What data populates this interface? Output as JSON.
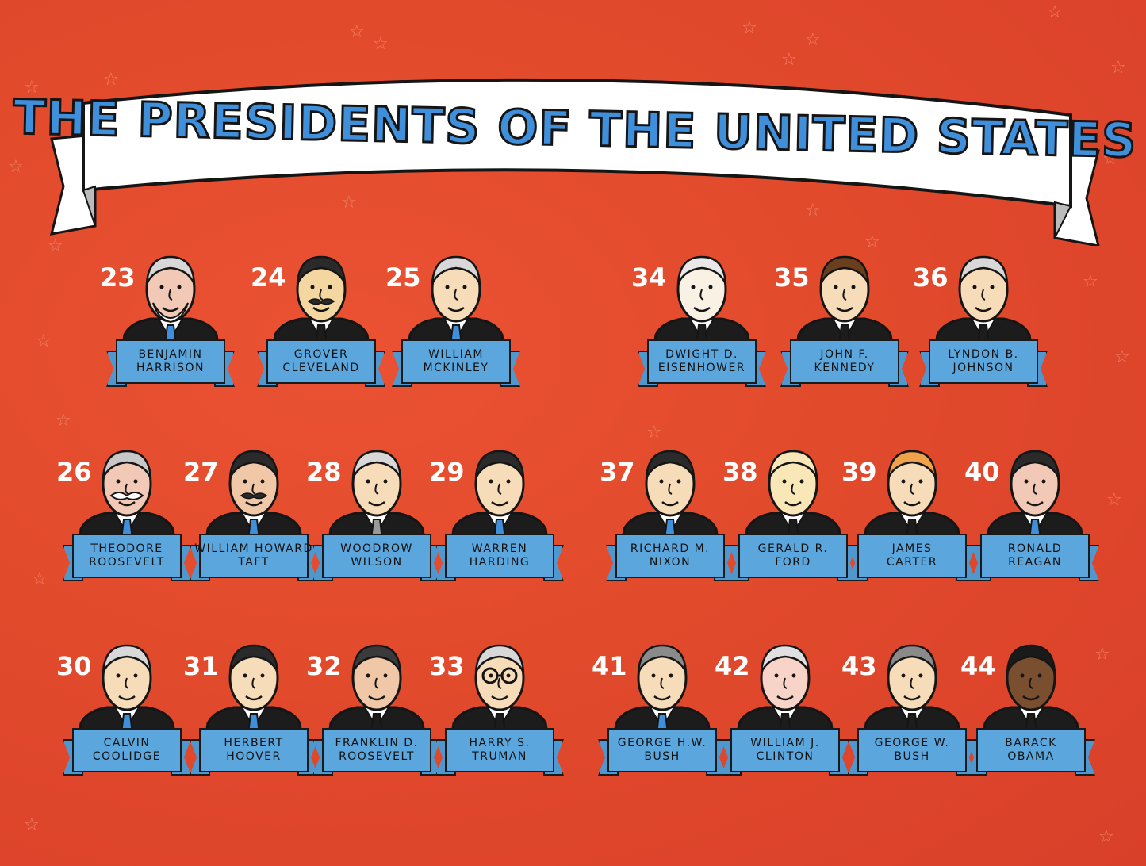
{
  "title": "THE PRESIDENTS OF THE UNITED STATES",
  "colors": {
    "background": "#e5472c",
    "title_fill": "#3f8fdb",
    "ribbon": "#5aa6dd",
    "suit": "#1c1c1c",
    "number": "#ffffff"
  },
  "presidents": [
    {
      "number": "23",
      "line1": "BENJAMIN",
      "line2": "HARRISON",
      "skin": "#f2c9b6",
      "hair": "#d8d8d8",
      "tie": "#3f8fdb",
      "beard": "white"
    },
    {
      "number": "24",
      "line1": "GROVER",
      "line2": "CLEVELAND",
      "skin": "#f3d6a0",
      "hair": "#2a2a2a",
      "tie": "#1c1c1c",
      "beard": "mustache-dark"
    },
    {
      "number": "25",
      "line1": "WILLIAM",
      "line2": "MCKINLEY",
      "skin": "#f6dcb8",
      "hair": "#d8d8d8",
      "tie": "#3f8fdb",
      "beard": "none"
    },
    {
      "number": "34",
      "line1": "DWIGHT D.",
      "line2": "EISENHOWER",
      "skin": "#f8f1e4",
      "hair": "#e8e8e8",
      "tie": "#1c1c1c",
      "beard": "none"
    },
    {
      "number": "35",
      "line1": "JOHN F.",
      "line2": "KENNEDY",
      "skin": "#f6dcb8",
      "hair": "#6b3f1e",
      "tie": "#1c1c1c",
      "beard": "none"
    },
    {
      "number": "36",
      "line1": "LYNDON B.",
      "line2": "JOHNSON",
      "skin": "#f6dcb8",
      "hair": "#d8d8d8",
      "tie": "#1c1c1c",
      "beard": "none"
    },
    {
      "number": "26",
      "line1": "THEODORE",
      "line2": "ROOSEVELT",
      "skin": "#f2c9b6",
      "hair": "#c8c8c8",
      "tie": "#3f8fdb",
      "beard": "mustache-white"
    },
    {
      "number": "27",
      "line1": "WILLIAM HOWARD",
      "line2": "TAFT",
      "skin": "#f0c8a8",
      "hair": "#2a2a2a",
      "tie": "#3f8fdb",
      "beard": "mustache-dark"
    },
    {
      "number": "28",
      "line1": "WOODROW",
      "line2": "WILSON",
      "skin": "#f6dcb8",
      "hair": "#d8d8d8",
      "tie": "#9a9a9a",
      "beard": "none"
    },
    {
      "number": "29",
      "line1": "WARREN",
      "line2": "HARDING",
      "skin": "#f6dcb8",
      "hair": "#2a2a2a",
      "tie": "#3f8fdb",
      "beard": "none"
    },
    {
      "number": "37",
      "line1": "RICHARD M.",
      "line2": "NIXON",
      "skin": "#f6dcb8",
      "hair": "#2a2a2a",
      "tie": "#3f8fdb",
      "beard": "none"
    },
    {
      "number": "38",
      "line1": "GERALD R.",
      "line2": "FORD",
      "skin": "#f9e7b8",
      "hair": "#f9e7b8",
      "tie": "#1c1c1c",
      "beard": "none"
    },
    {
      "number": "39",
      "line1": "JAMES",
      "line2": "CARTER",
      "skin": "#f6dcb8",
      "hair": "#f0a24a",
      "tie": "#1c1c1c",
      "beard": "none"
    },
    {
      "number": "40",
      "line1": "RONALD",
      "line2": "REAGAN",
      "skin": "#f2c9b6",
      "hair": "#2a2a2a",
      "tie": "#3f8fdb",
      "beard": "none"
    },
    {
      "number": "30",
      "line1": "CALVIN",
      "line2": "COOLIDGE",
      "skin": "#f6dcb8",
      "hair": "#d8d8d8",
      "tie": "#3f8fdb",
      "beard": "none"
    },
    {
      "number": "31",
      "line1": "HERBERT",
      "line2": "HOOVER",
      "skin": "#f6dcb8",
      "hair": "#2a2a2a",
      "tie": "#3f8fdb",
      "beard": "none"
    },
    {
      "number": "32",
      "line1": "FRANKLIN D.",
      "line2": "ROOSEVELT",
      "skin": "#f0c8a8",
      "hair": "#3a3a3a",
      "tie": "#1c1c1c",
      "beard": "none"
    },
    {
      "number": "33",
      "line1": "HARRY S.",
      "line2": "TRUMAN",
      "skin": "#f6dcb8",
      "hair": "#d8d8d8",
      "tie": "#1c1c1c",
      "beard": "glasses"
    },
    {
      "number": "41",
      "line1": "GEORGE H.W.",
      "line2": "BUSH",
      "skin": "#f6dcb8",
      "hair": "#8a8a8a",
      "tie": "#3f8fdb",
      "beard": "none"
    },
    {
      "number": "42",
      "line1": "WILLIAM J.",
      "line2": "CLINTON",
      "skin": "#f8d4c8",
      "hair": "#e0e0e0",
      "tie": "#1c1c1c",
      "beard": "none"
    },
    {
      "number": "43",
      "line1": "GEORGE W.",
      "line2": "BUSH",
      "skin": "#f6dcb8",
      "hair": "#8a8a8a",
      "tie": "#1c1c1c",
      "beard": "none"
    },
    {
      "number": "44",
      "line1": "BARACK",
      "line2": "OBAMA",
      "skin": "#7a4f2f",
      "hair": "#1a1a1a",
      "tie": "#1c1c1c",
      "beard": "none"
    }
  ]
}
